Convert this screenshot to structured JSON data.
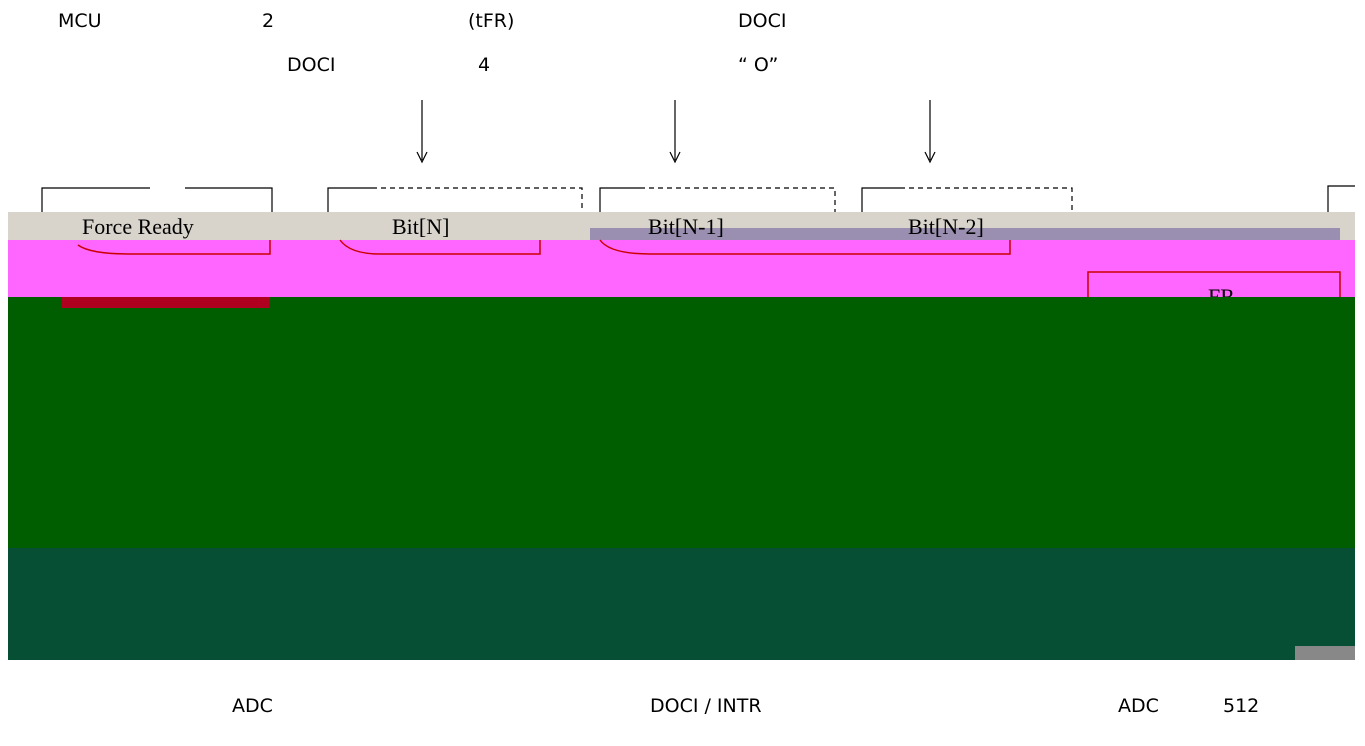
{
  "text_lines": [
    [
      "MCU",
      "2",
      "(tFR)",
      "DOCI"
    ],
    [
      "DOCI",
      "4",
      "“ O”"
    ]
  ],
  "diagram": {
    "labels": [
      "Force Ready",
      "Bit[N]",
      "Bit[N-1]",
      "Bit[N-2]",
      "FR"
    ]
  },
  "footer": [
    "ADC",
    "DOCI / INTR",
    "ADC",
    "512"
  ]
}
